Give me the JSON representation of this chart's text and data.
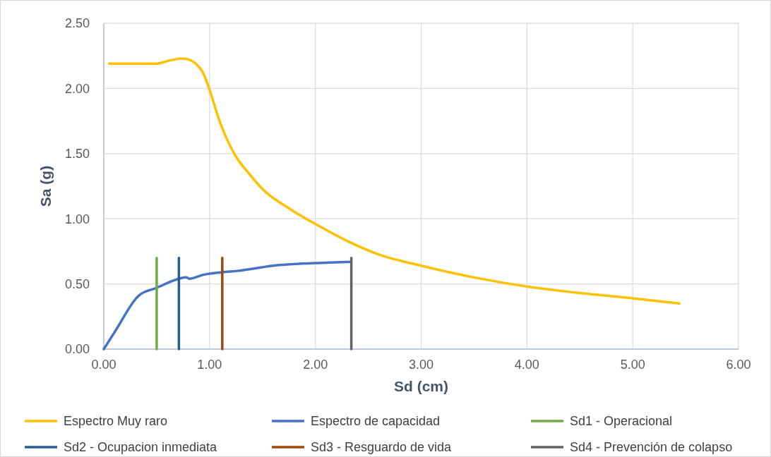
{
  "chart_data": {
    "type": "line",
    "xlabel": "Sd (cm)",
    "ylabel": "Sa (g)",
    "xlim": [
      0,
      6
    ],
    "xticks": [
      {
        "value": 0,
        "label": "0.00"
      },
      {
        "value": 1,
        "label": "1.00"
      },
      {
        "value": 2,
        "label": "2.00"
      },
      {
        "value": 3,
        "label": "3.00"
      },
      {
        "value": 4,
        "label": "4.00"
      },
      {
        "value": 5,
        "label": "5.00"
      },
      {
        "value": 6,
        "label": "6.00"
      }
    ],
    "ylim": [
      0,
      2.5
    ],
    "yticks": [
      {
        "value": 0,
        "label": "0.00"
      },
      {
        "value": 0.5,
        "label": "0.50"
      },
      {
        "value": 1,
        "label": "1.00"
      },
      {
        "value": 1.5,
        "label": "1.50"
      },
      {
        "value": 2,
        "label": "2.00"
      },
      {
        "value": 2.5,
        "label": "2.50"
      }
    ],
    "grid": true,
    "legend": "bottom",
    "line_style": "solid",
    "series": [
      {
        "name": "Espectro Muy raro",
        "color": "#ffc000",
        "x": [
          0.05,
          0.5,
          0.6,
          0.75,
          0.87,
          0.95,
          1.0,
          1.09,
          1.24,
          1.38,
          1.51,
          1.75,
          2.0,
          2.3,
          2.62,
          3.0,
          3.5,
          4.0,
          4.5,
          5.0,
          5.44
        ],
        "values": [
          2.19,
          2.19,
          2.21,
          2.23,
          2.19,
          2.1,
          1.99,
          1.76,
          1.49,
          1.34,
          1.22,
          1.08,
          0.96,
          0.83,
          0.72,
          0.64,
          0.55,
          0.48,
          0.43,
          0.39,
          0.35
        ]
      },
      {
        "name": "Espectro de capacidad",
        "color": "#4472c4",
        "x": [
          0,
          0.11,
          0.33,
          0.5,
          0.71,
          0.78,
          0.81,
          0.94,
          1.12,
          1.26,
          1.6,
          2.0,
          2.34
        ],
        "values": [
          0,
          0.14,
          0.41,
          0.47,
          0.54,
          0.55,
          0.54,
          0.57,
          0.59,
          0.6,
          0.64,
          0.66,
          0.67
        ]
      },
      {
        "name": "Sd1 - Operacional",
        "color": "#70ad47",
        "x": [
          0.5,
          0.5
        ],
        "values": [
          0,
          0.7
        ]
      },
      {
        "name": "Sd2 - Ocupacion inmediata",
        "color": "#255e91",
        "x": [
          0.71,
          0.71
        ],
        "values": [
          0,
          0.7
        ]
      },
      {
        "name": "Sd3 - Resguardo de vida",
        "color": "#9e480e",
        "x": [
          1.12,
          1.12
        ],
        "values": [
          0,
          0.7
        ]
      },
      {
        "name": "Sd4 - Prevención de colapso",
        "color": "#636363",
        "x": [
          2.34,
          2.34
        ],
        "values": [
          0,
          0.7
        ]
      }
    ]
  }
}
